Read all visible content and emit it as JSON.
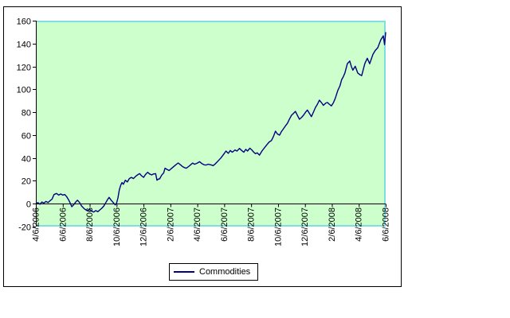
{
  "window": {
    "background": "#FFFFFF"
  },
  "chart": {
    "legend": {
      "label": "Commodities"
    },
    "colors": {
      "series_line": "#000080",
      "plot_bg": "#CCFFCC",
      "plot_border": "#7FDFDF",
      "axis": "#000000",
      "chart_border": "#000000",
      "chart_bg": "#FFFFFF",
      "text": "#000000"
    }
  },
  "chart_data": {
    "type": "line",
    "title": "",
    "xlabel": "",
    "ylabel": "",
    "ylim": [
      -20,
      160
    ],
    "y_ticks": [
      160,
      140,
      120,
      100,
      80,
      60,
      40,
      20,
      0,
      -20
    ],
    "x_tick_labels": [
      "4/6/2006",
      "6/6/2006",
      "8/6/2006",
      "10/6/2006",
      "12/6/2006",
      "2/6/2007",
      "4/6/2007",
      "6/6/2007",
      "8/6/2007",
      "10/6/2007",
      "12/6/2007",
      "2/6/2008",
      "4/6/2008",
      "6/6/2008"
    ],
    "x_unit": "months since 4/6/2006",
    "x_range_months": [
      0,
      26
    ],
    "x_axis_crosses_at": 0,
    "grid": false,
    "legend_position": "bottom-center",
    "series": [
      {
        "name": "Commodities",
        "points": [
          [
            0,
            0
          ],
          [
            0.15,
            1
          ],
          [
            0.3,
            -0.5
          ],
          [
            0.45,
            1.5
          ],
          [
            0.6,
            0.5
          ],
          [
            0.75,
            2
          ],
          [
            0.9,
            1
          ],
          [
            1.05,
            2.5
          ],
          [
            1.2,
            4
          ],
          [
            1.35,
            8
          ],
          [
            1.54,
            9
          ],
          [
            1.7,
            7.5
          ],
          [
            1.85,
            8.5
          ],
          [
            2,
            7.5
          ],
          [
            2.15,
            8
          ],
          [
            2.3,
            6
          ],
          [
            2.45,
            3
          ],
          [
            2.55,
            0.5
          ],
          [
            2.67,
            -2.6
          ],
          [
            2.8,
            -1
          ],
          [
            3,
            2
          ],
          [
            3.09,
            3
          ],
          [
            3.25,
            1
          ],
          [
            3.4,
            -2
          ],
          [
            3.6,
            -4.5
          ],
          [
            3.8,
            -6
          ],
          [
            4,
            -5
          ],
          [
            4.15,
            -6.5
          ],
          [
            4.3,
            -7.3
          ],
          [
            4.45,
            -6
          ],
          [
            4.6,
            -7
          ],
          [
            4.75,
            -5.5
          ],
          [
            4.9,
            -4
          ],
          [
            5.05,
            -2
          ],
          [
            5.2,
            1
          ],
          [
            5.35,
            4
          ],
          [
            5.44,
            5.5
          ],
          [
            5.6,
            3
          ],
          [
            5.75,
            1
          ],
          [
            5.9,
            -1
          ],
          [
            6,
            0.5
          ],
          [
            6.1,
            5
          ],
          [
            6.2,
            12
          ],
          [
            6.3,
            16
          ],
          [
            6.4,
            18.5
          ],
          [
            6.5,
            17
          ],
          [
            6.65,
            20.5
          ],
          [
            6.8,
            19
          ],
          [
            6.95,
            22
          ],
          [
            7.1,
            23
          ],
          [
            7.25,
            22
          ],
          [
            7.42,
            24
          ],
          [
            7.6,
            25.5
          ],
          [
            7.72,
            26.3
          ],
          [
            7.85,
            24.5
          ],
          [
            8.01,
            23
          ],
          [
            8.15,
            25.5
          ],
          [
            8.31,
            27.5
          ],
          [
            8.45,
            26
          ],
          [
            8.61,
            25.2
          ],
          [
            8.75,
            26
          ],
          [
            8.9,
            26.3
          ],
          [
            9,
            20.5
          ],
          [
            9.1,
            21.5
          ],
          [
            9.2,
            21.7
          ],
          [
            9.35,
            25
          ],
          [
            9.5,
            27
          ],
          [
            9.6,
            31
          ],
          [
            9.75,
            30
          ],
          [
            9.9,
            29
          ],
          [
            10.05,
            30.5
          ],
          [
            10.2,
            32
          ],
          [
            10.4,
            34
          ],
          [
            10.58,
            35.6
          ],
          [
            10.75,
            34
          ],
          [
            10.9,
            32.5
          ],
          [
            11.05,
            31.5
          ],
          [
            11.18,
            31
          ],
          [
            11.35,
            32.5
          ],
          [
            11.5,
            34
          ],
          [
            11.65,
            35.5
          ],
          [
            11.8,
            34.5
          ],
          [
            12,
            35.5
          ],
          [
            12.17,
            36.7
          ],
          [
            12.35,
            35
          ],
          [
            12.5,
            34
          ],
          [
            12.65,
            33.8
          ],
          [
            12.8,
            34.5
          ],
          [
            13,
            34
          ],
          [
            13.18,
            33.3
          ],
          [
            13.35,
            35
          ],
          [
            13.55,
            37.5
          ],
          [
            13.75,
            40
          ],
          [
            13.95,
            43
          ],
          [
            14.13,
            46
          ],
          [
            14.3,
            44
          ],
          [
            14.45,
            46.5
          ],
          [
            14.6,
            45
          ],
          [
            14.8,
            47
          ],
          [
            14.95,
            46
          ],
          [
            15.13,
            48.3
          ],
          [
            15.3,
            46.5
          ],
          [
            15.45,
            45
          ],
          [
            15.6,
            47.5
          ],
          [
            15.73,
            46
          ],
          [
            15.9,
            48.5
          ],
          [
            16.05,
            47
          ],
          [
            16.2,
            45
          ],
          [
            16.32,
            43.7
          ],
          [
            16.45,
            44.5
          ],
          [
            16.62,
            42.5
          ],
          [
            16.8,
            46
          ],
          [
            17,
            49
          ],
          [
            17.2,
            52
          ],
          [
            17.35,
            54
          ],
          [
            17.51,
            55.2
          ],
          [
            17.65,
            58.5
          ],
          [
            17.81,
            63.4
          ],
          [
            17.95,
            61
          ],
          [
            18.11,
            59.9
          ],
          [
            18.25,
            63
          ],
          [
            18.4,
            65.5
          ],
          [
            18.55,
            68
          ],
          [
            18.7,
            70.3
          ],
          [
            18.85,
            74
          ],
          [
            19,
            77.3
          ],
          [
            19.15,
            79
          ],
          [
            19.29,
            80.7
          ],
          [
            19.45,
            77
          ],
          [
            19.59,
            73.8
          ],
          [
            19.75,
            75.5
          ],
          [
            19.89,
            77.3
          ],
          [
            20.05,
            80
          ],
          [
            20.18,
            81.9
          ],
          [
            20.33,
            79
          ],
          [
            20.48,
            76.1
          ],
          [
            20.63,
            80
          ],
          [
            20.78,
            84.2
          ],
          [
            20.93,
            87
          ],
          [
            21.07,
            90.5
          ],
          [
            21.25,
            88
          ],
          [
            21.37,
            86
          ],
          [
            21.55,
            88
          ],
          [
            21.67,
            88.5
          ],
          [
            21.8,
            87
          ],
          [
            21.96,
            85.5
          ],
          [
            22.1,
            88
          ],
          [
            22.25,
            92
          ],
          [
            22.44,
            99
          ],
          [
            22.6,
            103
          ],
          [
            22.73,
            108.5
          ],
          [
            22.85,
            111
          ],
          [
            22.97,
            114.3
          ],
          [
            23.15,
            122.4
          ],
          [
            23.33,
            124.7
          ],
          [
            23.45,
            120
          ],
          [
            23.56,
            116.7
          ],
          [
            23.74,
            120.1
          ],
          [
            23.92,
            114.3
          ],
          [
            24.05,
            113
          ],
          [
            24.22,
            112
          ],
          [
            24.45,
            122.4
          ],
          [
            24.63,
            127.1
          ],
          [
            24.81,
            122.4
          ],
          [
            25.05,
            130.5
          ],
          [
            25.23,
            134
          ],
          [
            25.41,
            136.3
          ],
          [
            25.64,
            143.3
          ],
          [
            25.82,
            146.7
          ],
          [
            25.92,
            139
          ],
          [
            26,
            150
          ]
        ]
      }
    ]
  }
}
